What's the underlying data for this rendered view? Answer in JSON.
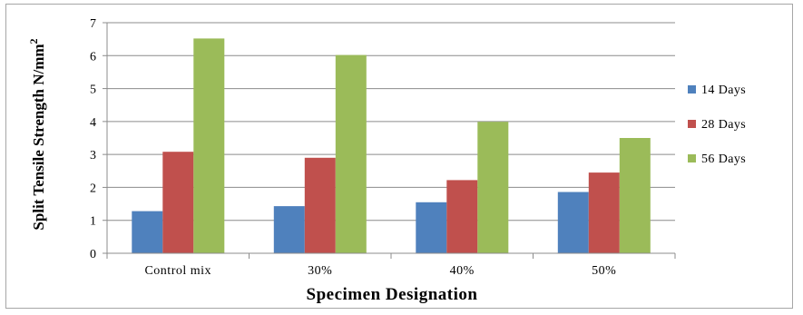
{
  "chart_data": {
    "type": "bar",
    "categories": [
      "Control mix",
      "30%",
      "40%",
      "50%"
    ],
    "series": [
      {
        "name": "14 Days",
        "values": [
          1.28,
          1.43,
          1.55,
          1.86
        ],
        "color": "#4f81bd"
      },
      {
        "name": "28 Days",
        "values": [
          3.08,
          2.9,
          2.22,
          2.45
        ],
        "color": "#c0504d"
      },
      {
        "name": "56 Days",
        "values": [
          6.52,
          6.02,
          3.99,
          3.5
        ],
        "color": "#9bbb59"
      }
    ],
    "title": "",
    "xlabel": "Specimen Designation",
    "ylabel": "Split Tensile Strength N/mm",
    "ylabel_superscript": "2",
    "ylim": [
      0,
      7
    ],
    "yticks": [
      "0",
      "1",
      "2",
      "3",
      "4",
      "5",
      "6",
      "7"
    ],
    "grid": true,
    "legend_position": "right"
  }
}
